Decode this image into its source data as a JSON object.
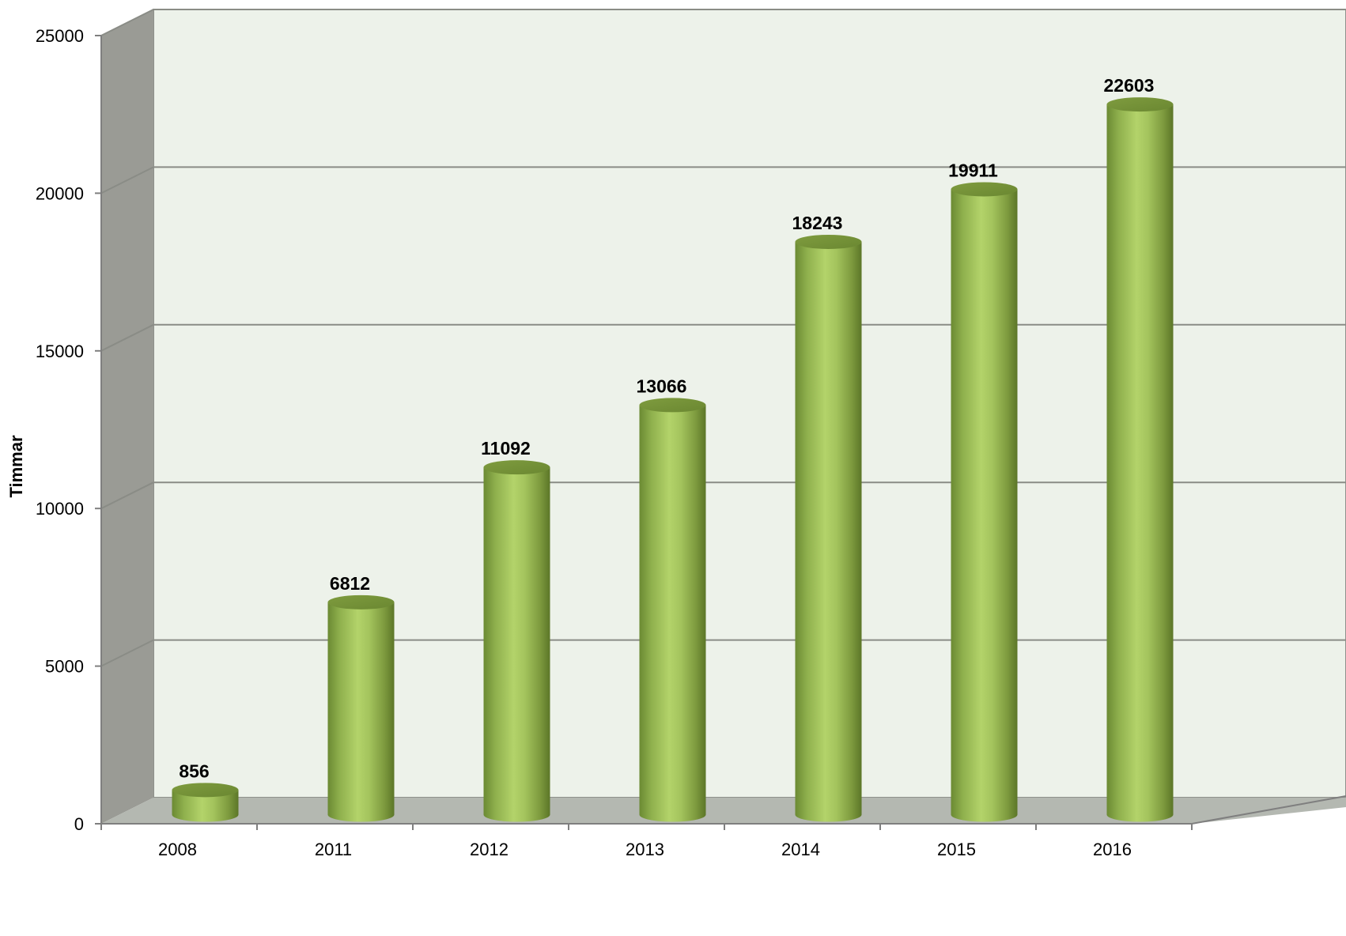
{
  "chart_data": {
    "type": "bar",
    "style": "3d-cylinder",
    "categories": [
      "2008",
      "2011",
      "2012",
      "2013",
      "2014",
      "2015",
      "2016"
    ],
    "values": [
      856,
      6812,
      11092,
      13066,
      18243,
      19911,
      22603
    ],
    "data_labels": [
      "856",
      "6812",
      "11092",
      "13066",
      "18243",
      "19911",
      "22603"
    ],
    "title": "",
    "xlabel": "",
    "ylabel": "Timmar",
    "ylim": [
      0,
      25000
    ],
    "yticks": [
      "0",
      "5000",
      "10000",
      "15000",
      "20000",
      "25000"
    ],
    "grid": true,
    "legend": "none",
    "colors": {
      "bar": "#9bbb59",
      "bar_highlight": "#b3d36a",
      "bar_shadow": "#5f7a2c",
      "wall": "#edf2ea",
      "floor": "#b4b8b1",
      "side_wall": "#9a9b95",
      "gridline": "#8a8c86",
      "axis": "#7f7f7f"
    }
  }
}
